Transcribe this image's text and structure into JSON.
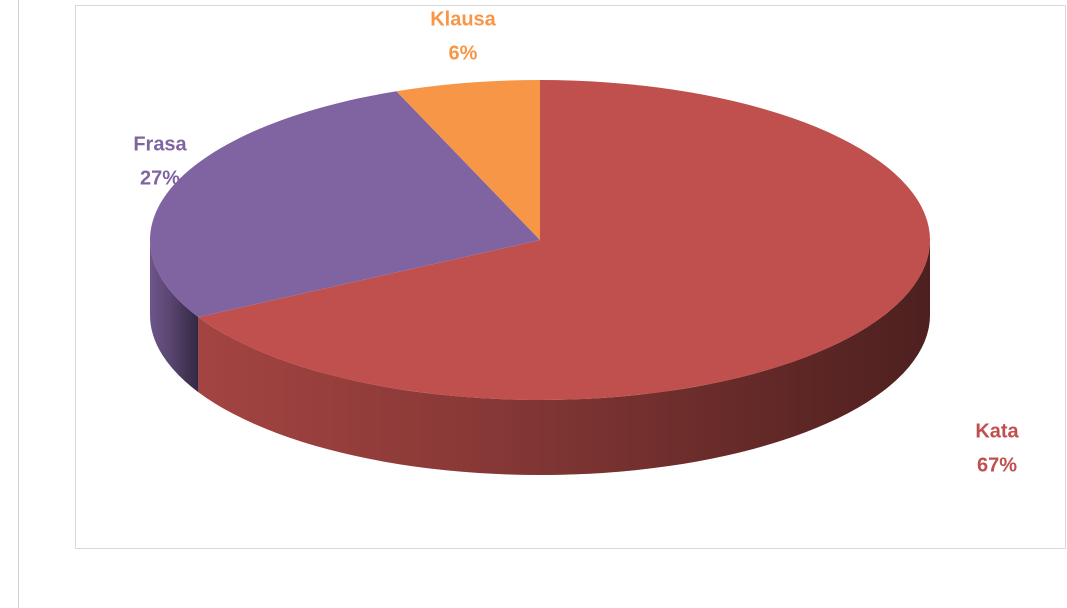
{
  "chart_data": {
    "type": "pie",
    "categories": [
      "Kata",
      "Frasa",
      "Klausa"
    ],
    "values": [
      67,
      27,
      6
    ],
    "value_labels": [
      "67%",
      "27%",
      "6%"
    ],
    "colors": [
      "#c0504d",
      "#8064a2",
      "#f79646"
    ]
  }
}
